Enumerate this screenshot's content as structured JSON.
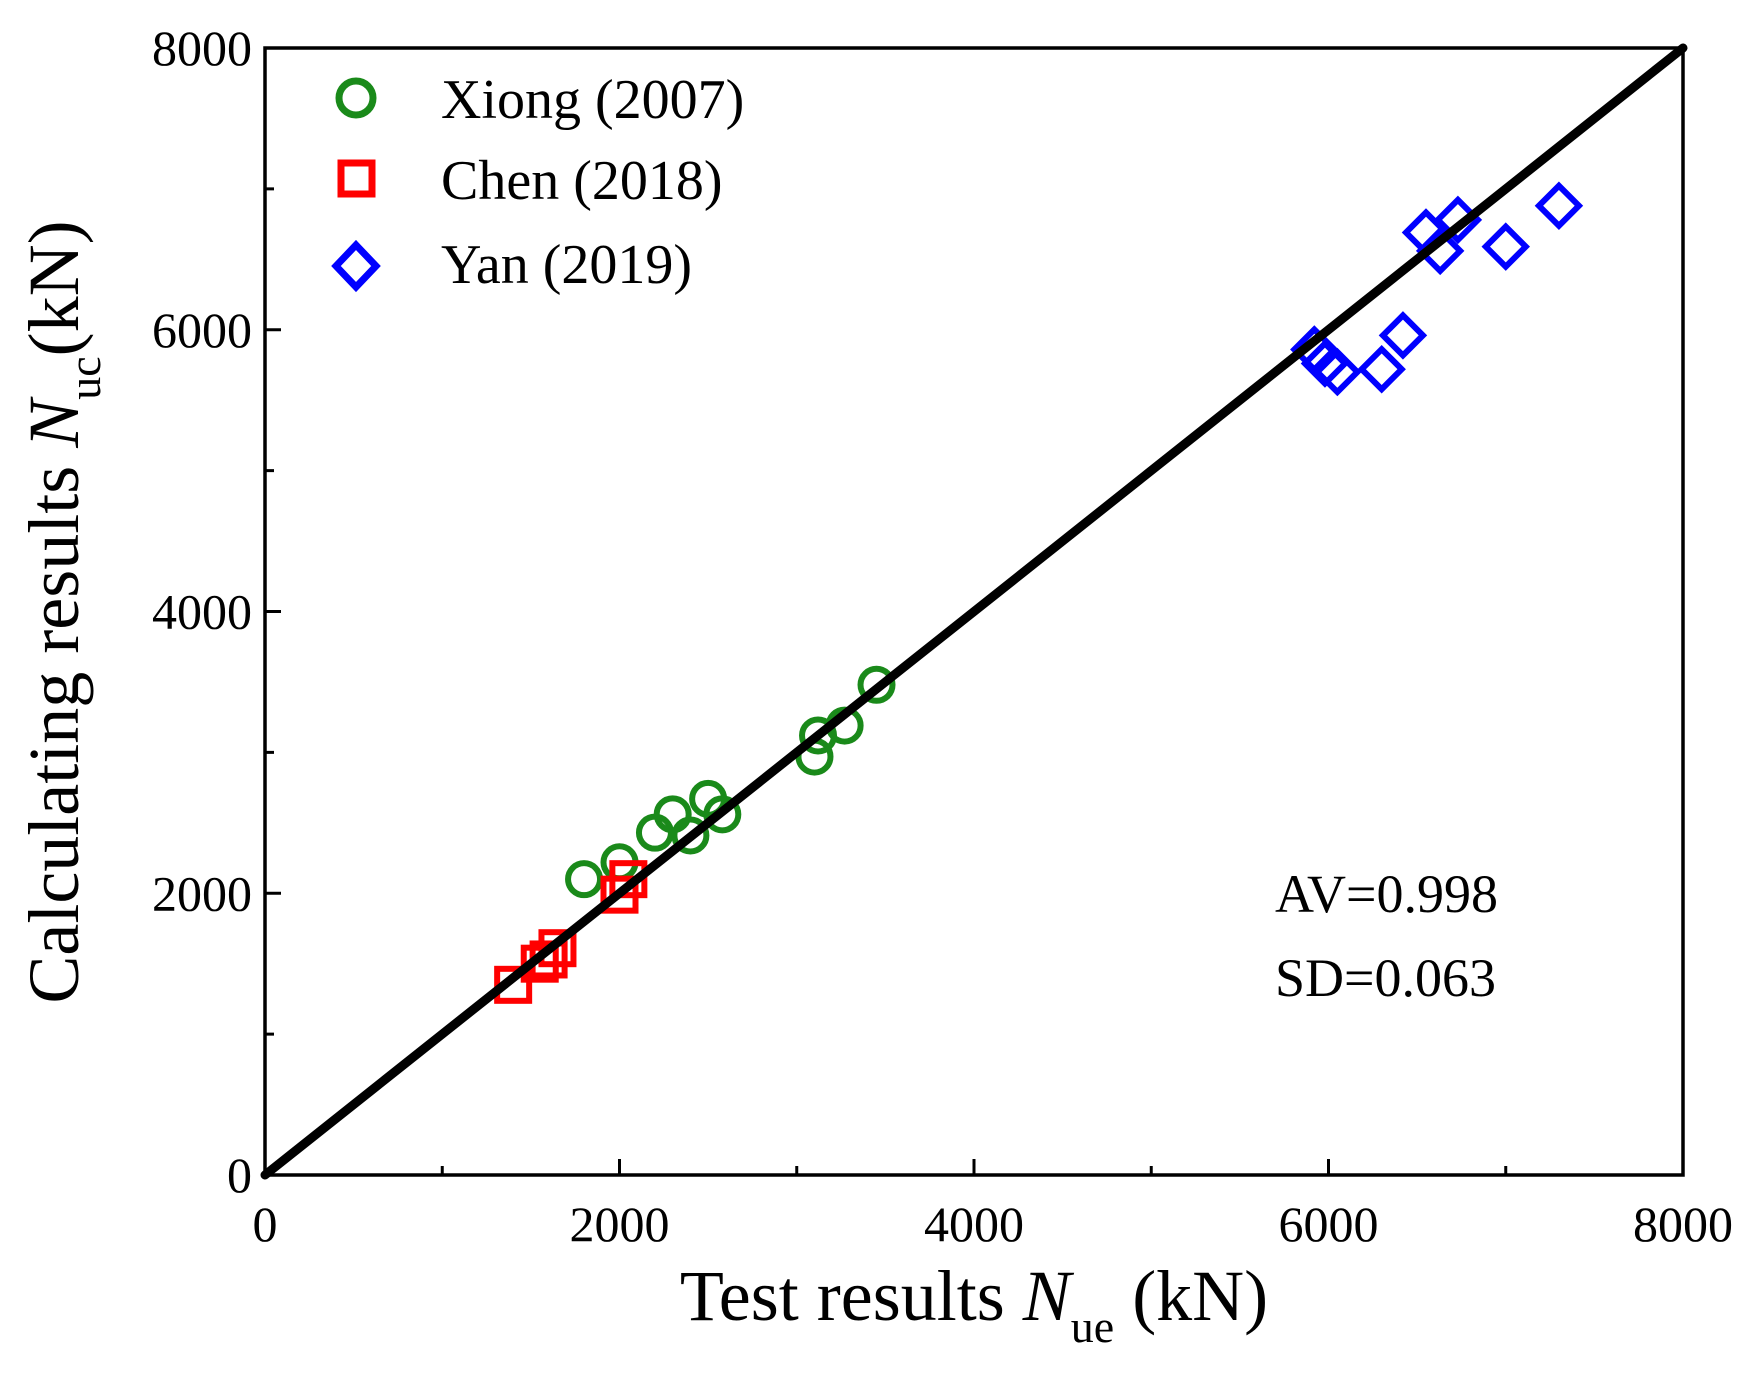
{
  "chart_data": {
    "type": "scatter",
    "xlabel": {
      "prefix": "Test results ",
      "symbol": "N",
      "subscript": "ue",
      "suffix": " (kN)"
    },
    "ylabel": {
      "prefix": "Calculating results ",
      "symbol": "N",
      "subscript": "uc",
      "suffix": "(kN)"
    },
    "xlim": [
      0,
      8000
    ],
    "ylim": [
      0,
      8000
    ],
    "x_major_ticks": [
      0,
      2000,
      4000,
      6000,
      8000
    ],
    "y_major_ticks": [
      0,
      2000,
      4000,
      6000,
      8000
    ],
    "x_tick_labels": [
      "0",
      "2000",
      "4000",
      "6000",
      "8000"
    ],
    "y_tick_labels": [
      "0",
      "2000",
      "4000",
      "6000",
      "8000"
    ],
    "x_minor_ticks": [
      1000,
      3000,
      5000,
      7000
    ],
    "y_minor_ticks": [
      1000,
      3000,
      5000,
      7000
    ],
    "grid": false,
    "legend_position": "top-left",
    "reference_line": {
      "from": [
        0,
        0
      ],
      "to": [
        8000,
        8000
      ],
      "color": "#000000"
    },
    "series": [
      {
        "name": "Xiong (2007)",
        "marker": "circle",
        "color": "#1a8a1a",
        "points": [
          [
            1800,
            2100
          ],
          [
            2000,
            2220
          ],
          [
            2200,
            2430
          ],
          [
            2300,
            2560
          ],
          [
            2400,
            2410
          ],
          [
            2500,
            2670
          ],
          [
            2580,
            2560
          ],
          [
            3100,
            2970
          ],
          [
            3120,
            3120
          ],
          [
            3270,
            3190
          ],
          [
            3450,
            3480
          ]
        ]
      },
      {
        "name": "Chen (2018)",
        "marker": "square",
        "color": "#ff0000",
        "points": [
          [
            1400,
            1350
          ],
          [
            1550,
            1500
          ],
          [
            1600,
            1530
          ],
          [
            1650,
            1610
          ],
          [
            2000,
            1990
          ],
          [
            2050,
            2100
          ]
        ]
      },
      {
        "name": "Yan (2019)",
        "marker": "diamond",
        "color": "#0000ff",
        "points": [
          [
            5920,
            5860
          ],
          [
            5980,
            5760
          ],
          [
            6050,
            5700
          ],
          [
            6300,
            5720
          ],
          [
            6420,
            5960
          ],
          [
            6550,
            6690
          ],
          [
            6630,
            6560
          ],
          [
            6730,
            6780
          ],
          [
            7000,
            6590
          ],
          [
            7300,
            6880
          ]
        ]
      }
    ],
    "annotations": [
      "AV=0.998",
      "SD=0.063"
    ]
  }
}
